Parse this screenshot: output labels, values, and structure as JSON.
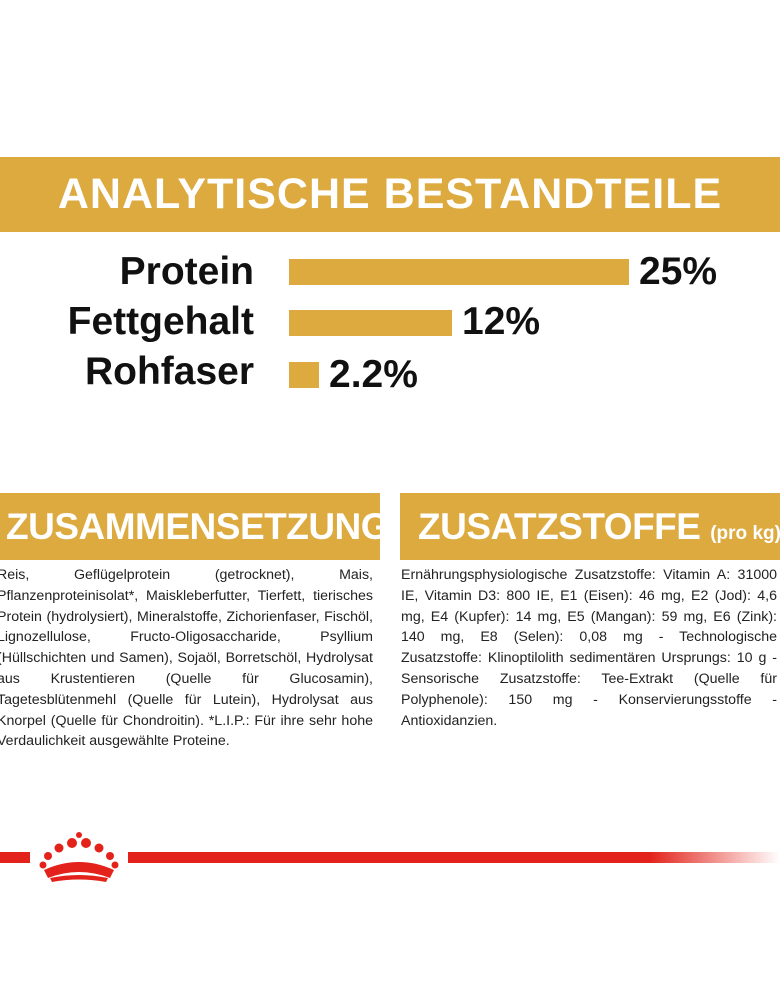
{
  "banner": {
    "title": "ANALYTISCHE BESTANDTEILE"
  },
  "nutrients": [
    {
      "label": "Protein",
      "value": "25%",
      "percent": 25
    },
    {
      "label": "Fettgehalt",
      "value": "12%",
      "percent": 12
    },
    {
      "label": "Rohfaser",
      "value": "2.2%",
      "percent": 2.2
    }
  ],
  "composition": {
    "title": "ZUSAMMENSETZUNG",
    "text": "Reis, Geflügelprotein (getrocknet), Mais, Pflanzenproteinisolat*, Maiskleberfutter, Tierfett, tierisches Protein (hydrolysiert), Mineralstoffe, Zichorienfaser, Fischöl, Lignozellulose, Fructo-Oligosaccharide, Psyllium (Hüllschichten und Samen), Sojaöl, Borretschöl, Hydrolysat aus Krustentieren (Quelle für Glucosamin), Tagetesblütenmehl (Quelle für Lutein), Hydrolysat aus Knorpel (Quelle für Chondroitin). *L.I.P.: Für ihre sehr hohe Verdaulichkeit ausgewählte Proteine."
  },
  "additives": {
    "title": "ZUSATZSTOFFE",
    "subtitle": "(pro kg)",
    "text": "Ernährungsphysiologische Zusatzstoffe: Vitamin A: 31000 IE, Vitamin D3: 800 IE, E1 (Eisen): 46 mg, E2 (Jod): 4,6 mg, E4 (Kupfer): 14 mg, E5 (Mangan): 59 mg, E6 (Zink): 140 mg, E8 (Selen): 0,08 mg - Technologische Zusatzstoffe: Klinoptilolith sedimentären Ursprungs: 10 g - Sensorische Zusatzstoffe: Tee-Extrakt (Quelle für Polyphenole): 150 mg - Konservierungsstoffe - Antioxidanzien."
  },
  "logo": {
    "icon": "royal-canin-crown-icon"
  },
  "colors": {
    "gold": "#dcaa3f",
    "red": "#e3231b"
  }
}
